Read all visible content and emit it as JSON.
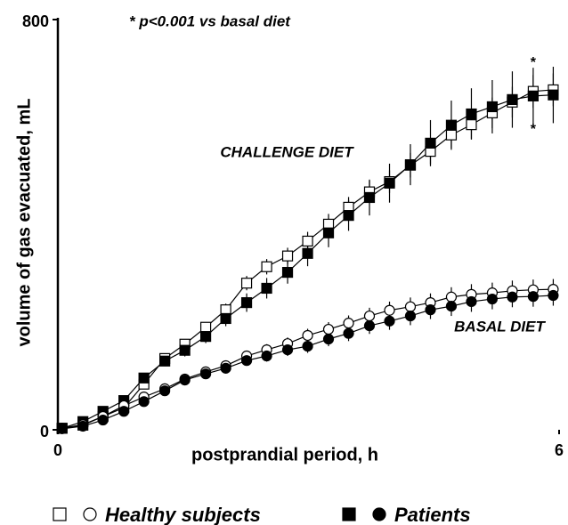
{
  "chart_data": {
    "type": "line",
    "note": "* p<0.001 vs basal diet",
    "challenge_label": "CHALLENGE DIET",
    "basal_label": "BASAL DIET",
    "stars": [
      "*",
      "*"
    ],
    "xlabel": "postprandial period, h",
    "ylabel": "volume of gas evacuated,  mL",
    "xlim": [
      0,
      6
    ],
    "xticks": [
      0,
      6
    ],
    "ylim": [
      0,
      800
    ],
    "yticks": [
      0,
      800
    ],
    "x": [
      0.05,
      0.3,
      0.54,
      0.79,
      1.03,
      1.28,
      1.52,
      1.77,
      2.01,
      2.26,
      2.5,
      2.75,
      2.99,
      3.24,
      3.48,
      3.73,
      3.97,
      4.22,
      4.46,
      4.71,
      4.95,
      5.2,
      5.44,
      5.69,
      5.93
    ],
    "legend": [
      "Healthy subjects",
      "Patients"
    ],
    "series": [
      {
        "name": "Healthy subjects",
        "marker": "square",
        "filled": false,
        "color": "#000000",
        "values": [
          3,
          9,
          26,
          43,
          89,
          139,
          167,
          200,
          234,
          286,
          318,
          339,
          368,
          401,
          434,
          464,
          484,
          516,
          543,
          575,
          595,
          618,
          639,
          660,
          663
        ],
        "errors": [
          0,
          2,
          3,
          4,
          6,
          8,
          10,
          10,
          12,
          14,
          15,
          16,
          18,
          20,
          20,
          22,
          22,
          24,
          25,
          26,
          28,
          30,
          30,
          32,
          32
        ]
      },
      {
        "name": "Patients",
        "marker": "square",
        "filled": true,
        "color": "#000000",
        "values": [
          3,
          16,
          36,
          57,
          101,
          134,
          155,
          182,
          217,
          248,
          276,
          307,
          344,
          384,
          418,
          453,
          481,
          517,
          559,
          594,
          616,
          630,
          644,
          651,
          653
        ],
        "errors": [
          0,
          3,
          5,
          6,
          8,
          10,
          12,
          13,
          15,
          18,
          20,
          22,
          25,
          28,
          30,
          35,
          38,
          40,
          45,
          48,
          50,
          52,
          55,
          55,
          55
        ]
      },
      {
        "name": "Healthy subjects",
        "marker": "circle",
        "filled": false,
        "color": "#000000",
        "values": [
          3,
          10,
          26,
          47,
          64,
          80,
          99,
          113,
          125,
          144,
          156,
          168,
          184,
          196,
          208,
          222,
          233,
          240,
          248,
          259,
          264,
          267,
          271,
          273,
          274
        ],
        "errors": [
          0,
          2,
          3,
          4,
          5,
          6,
          7,
          8,
          9,
          10,
          11,
          12,
          13,
          14,
          15,
          16,
          17,
          18,
          18,
          19,
          20,
          20,
          20,
          20,
          20
        ]
      },
      {
        "name": "Patients",
        "marker": "circle",
        "filled": true,
        "color": "#000000",
        "values": [
          2,
          7,
          19,
          36,
          55,
          76,
          97,
          109,
          120,
          135,
          144,
          156,
          163,
          177,
          188,
          203,
          212,
          222,
          234,
          241,
          250,
          255,
          259,
          260,
          262
        ],
        "errors": [
          0,
          2,
          3,
          4,
          5,
          6,
          7,
          8,
          9,
          10,
          11,
          12,
          13,
          14,
          15,
          16,
          17,
          18,
          18,
          19,
          20,
          20,
          20,
          20,
          20
        ]
      }
    ]
  }
}
